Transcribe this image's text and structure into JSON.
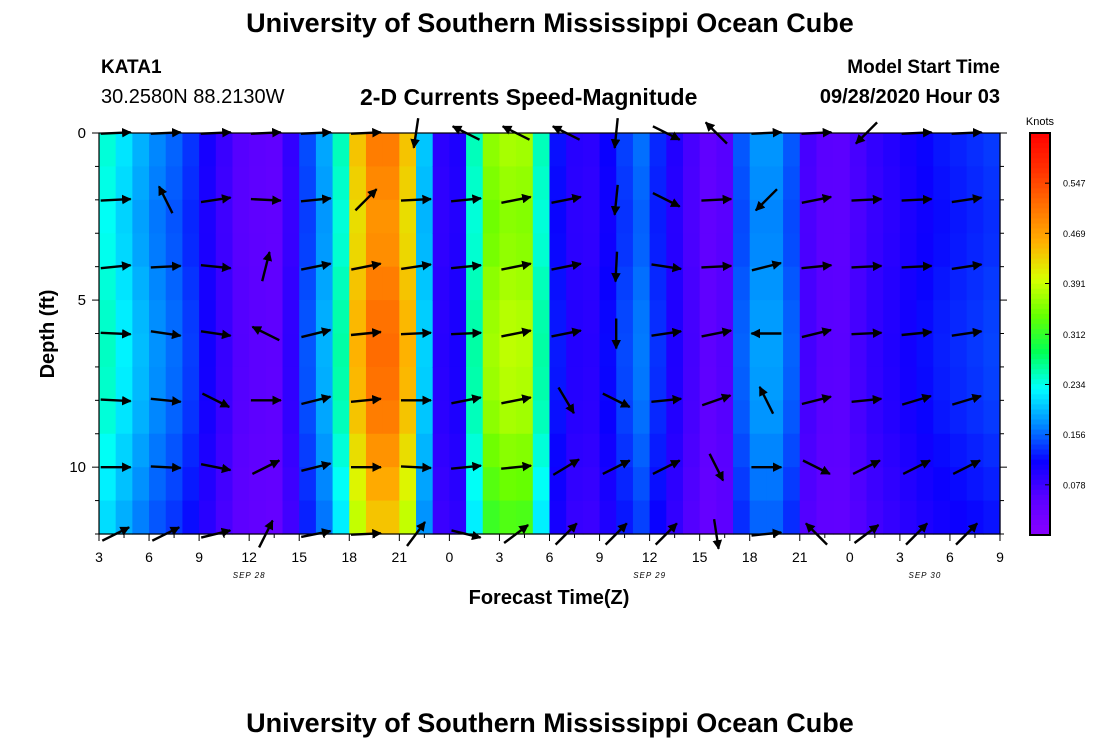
{
  "header": {
    "title": "University of Southern Mississippi Ocean Cube",
    "station_id": "KATA1",
    "coordinates": "30.2580N 88.2130W",
    "subtitle": "2-D Currents Speed-Magnitude",
    "model_start_label": "Model Start Time",
    "model_start_value": "09/28/2020 Hour 03"
  },
  "footer": {
    "title": "University of Southern Mississippi Ocean Cube"
  },
  "colors": {
    "scale": [
      "#8a00ff",
      "#5a00ff",
      "#0a00ff",
      "#0088ff",
      "#00ffff",
      "#00ff55",
      "#66ff00",
      "#d8ff00",
      "#ffb000",
      "#ff7000",
      "#ff3000",
      "#ff0000"
    ],
    "arrow": "#000000",
    "frame": "#000000"
  },
  "chart_data": {
    "type": "heatmap",
    "title": "2-D Currents Speed-Magnitude",
    "xlabel": "Forecast Time(Z)",
    "ylabel": "Depth (ft)",
    "x_range_hours": [
      0,
      54
    ],
    "ylim": [
      0,
      12
    ],
    "x_tick_labels": [
      "3",
      "6",
      "9",
      "12",
      "15",
      "18",
      "21",
      "0",
      "3",
      "6",
      "9",
      "12",
      "15",
      "18",
      "21",
      "0",
      "3",
      "6",
      "9"
    ],
    "y_tick_labels": [
      "0",
      "5",
      "10"
    ],
    "date_labels": [
      {
        "label": "SEP 28",
        "hour": 9
      },
      {
        "label": "SEP 29",
        "hour": 33
      },
      {
        "label": "SEP 30",
        "hour": 49.5
      }
    ],
    "colorbar": {
      "unit": "Knots",
      "min": 0.0,
      "max": 0.625,
      "ticks": [
        "0.547",
        "0.469",
        "0.391",
        "0.312",
        "0.234",
        "0.156",
        "0.078"
      ]
    },
    "time_profile_knots": [
      [
        0,
        0.25
      ],
      [
        1,
        0.23
      ],
      [
        2,
        0.2
      ],
      [
        3,
        0.18
      ],
      [
        4,
        0.16
      ],
      [
        5,
        0.15
      ],
      [
        6,
        0.12
      ],
      [
        7,
        0.09
      ],
      [
        8.5,
        0.06
      ],
      [
        10,
        0.05
      ],
      [
        11,
        0.05
      ],
      [
        12,
        0.12
      ],
      [
        13,
        0.17
      ],
      [
        14,
        0.2
      ],
      [
        14.5,
        0.25
      ],
      [
        15.5,
        0.44
      ],
      [
        16.5,
        0.5
      ],
      [
        17.5,
        0.5
      ],
      [
        18.5,
        0.44
      ],
      [
        19.5,
        0.2
      ],
      [
        20.5,
        0.09
      ],
      [
        21.5,
        0.1
      ],
      [
        22.5,
        0.25
      ],
      [
        23.5,
        0.36
      ],
      [
        25,
        0.38
      ],
      [
        26,
        0.36
      ],
      [
        26.5,
        0.25
      ],
      [
        27.5,
        0.12
      ],
      [
        29,
        0.08
      ],
      [
        30,
        0.1
      ],
      [
        31.5,
        0.14
      ],
      [
        32.5,
        0.16
      ],
      [
        33.5,
        0.13
      ],
      [
        35,
        0.08
      ],
      [
        36.5,
        0.05
      ],
      [
        37.5,
        0.06
      ],
      [
        38.5,
        0.15
      ],
      [
        40,
        0.19
      ],
      [
        41.5,
        0.15
      ],
      [
        42.5,
        0.07
      ],
      [
        44,
        0.05
      ],
      [
        45,
        0.06
      ],
      [
        46,
        0.08
      ],
      [
        48,
        0.1
      ],
      [
        50,
        0.12
      ],
      [
        52,
        0.13
      ],
      [
        54,
        0.14
      ]
    ],
    "depth_factors": [
      1.0,
      0.98,
      0.96,
      0.97,
      1.0,
      1.02,
      1.03,
      1.02,
      1.0,
      0.96,
      0.92,
      0.88,
      0.8
    ],
    "vector_rows_depth_ft": [
      0,
      2,
      4,
      6,
      8,
      10,
      12
    ],
    "vector_cols_hours": [
      1,
      4,
      7,
      10,
      13,
      16,
      19,
      22,
      25,
      28,
      31,
      34,
      37,
      40,
      43,
      46,
      49,
      52
    ],
    "vectors": [
      [
        [
          2,
          0.1
        ],
        [
          2,
          0.1
        ],
        [
          2,
          0.1
        ],
        [
          2,
          0.1
        ],
        [
          2,
          0.1
        ],
        [
          2,
          0.1
        ],
        [
          -0.3,
          -2
        ],
        [
          -2,
          1
        ],
        [
          -2,
          1
        ],
        [
          -2,
          1
        ],
        [
          -0.2,
          -2
        ],
        [
          2,
          -1
        ],
        [
          -1,
          1
        ],
        [
          2,
          0.1
        ],
        [
          2,
          0.1
        ],
        [
          -2,
          -2
        ],
        [
          2,
          0.1
        ],
        [
          2,
          0.1
        ]
      ],
      [
        [
          2,
          0.1
        ],
        [
          -1,
          2
        ],
        [
          2,
          0.3
        ],
        [
          2,
          -0.1
        ],
        [
          2,
          0.2
        ],
        [
          1,
          1
        ],
        [
          2,
          0.1
        ],
        [
          2,
          0.2
        ],
        [
          2,
          0.4
        ],
        [
          2,
          0.4
        ],
        [
          -0.2,
          -2
        ],
        [
          2,
          -1
        ],
        [
          2,
          0.1
        ],
        [
          -1,
          -1
        ],
        [
          2,
          0.4
        ],
        [
          2,
          0.1
        ],
        [
          2,
          0.1
        ],
        [
          2,
          0.3
        ]
      ],
      [
        [
          2,
          0.2
        ],
        [
          2,
          0.1
        ],
        [
          2,
          -0.2
        ],
        [
          0.5,
          2
        ],
        [
          2,
          0.4
        ],
        [
          2,
          0.4
        ],
        [
          2,
          0.3
        ],
        [
          2,
          0.2
        ],
        [
          2,
          0.4
        ],
        [
          2,
          0.4
        ],
        [
          -0.1,
          -2
        ],
        [
          2,
          -0.3
        ],
        [
          2,
          0.1
        ],
        [
          2,
          0.5
        ],
        [
          2,
          0.2
        ],
        [
          2,
          0.1
        ],
        [
          2,
          0.1
        ],
        [
          2,
          0.3
        ]
      ],
      [
        [
          2,
          -0.1
        ],
        [
          2,
          -0.3
        ],
        [
          2,
          -0.3
        ],
        [
          -2,
          1
        ],
        [
          2,
          0.5
        ],
        [
          2,
          0.2
        ],
        [
          2,
          0.1
        ],
        [
          2,
          0.1
        ],
        [
          2,
          0.4
        ],
        [
          2,
          0.4
        ],
        [
          0,
          -2
        ],
        [
          2,
          0.3
        ],
        [
          2,
          0.4
        ],
        [
          -2,
          0
        ],
        [
          2,
          0.5
        ],
        [
          2,
          0.1
        ],
        [
          2,
          0.2
        ],
        [
          2,
          0.3
        ]
      ],
      [
        [
          2,
          -0.1
        ],
        [
          2,
          -0.2
        ],
        [
          2,
          -1
        ],
        [
          2,
          0
        ],
        [
          2,
          0.5
        ],
        [
          2,
          0.2
        ],
        [
          2,
          0
        ],
        [
          2,
          0.4
        ],
        [
          2,
          0.4
        ],
        [
          1.2,
          -2
        ],
        [
          2,
          -1
        ],
        [
          2,
          0.2
        ],
        [
          2,
          0.7
        ],
        [
          -1,
          2
        ],
        [
          2,
          0.5
        ],
        [
          2,
          0.2
        ],
        [
          2,
          0.6
        ],
        [
          2,
          0.6
        ]
      ],
      [
        [
          2,
          0
        ],
        [
          2,
          -0.1
        ],
        [
          2,
          -0.4
        ],
        [
          2,
          1
        ],
        [
          2,
          0.5
        ],
        [
          2,
          0
        ],
        [
          2,
          -0.1
        ],
        [
          2,
          0.2
        ],
        [
          2,
          0.2
        ],
        [
          2,
          1.2
        ],
        [
          2,
          1
        ],
        [
          2,
          1
        ],
        [
          1,
          -2
        ],
        [
          2,
          0
        ],
        [
          2,
          -1
        ],
        [
          2,
          1
        ],
        [
          2,
          1
        ],
        [
          2,
          1
        ]
      ],
      [
        [
          2,
          1
        ],
        [
          2,
          1
        ],
        [
          2,
          0.5
        ],
        [
          1,
          2
        ],
        [
          2,
          0.4
        ],
        [
          2,
          0.1
        ],
        [
          1.5,
          2
        ],
        [
          2,
          -0.5
        ],
        [
          2,
          1.5
        ],
        [
          2,
          2
        ],
        [
          2,
          2
        ],
        [
          2,
          2
        ],
        [
          0.3,
          -2
        ],
        [
          2,
          0.2
        ],
        [
          -2,
          2
        ],
        [
          2,
          1.5
        ],
        [
          2,
          2
        ],
        [
          2,
          2
        ]
      ]
    ]
  }
}
